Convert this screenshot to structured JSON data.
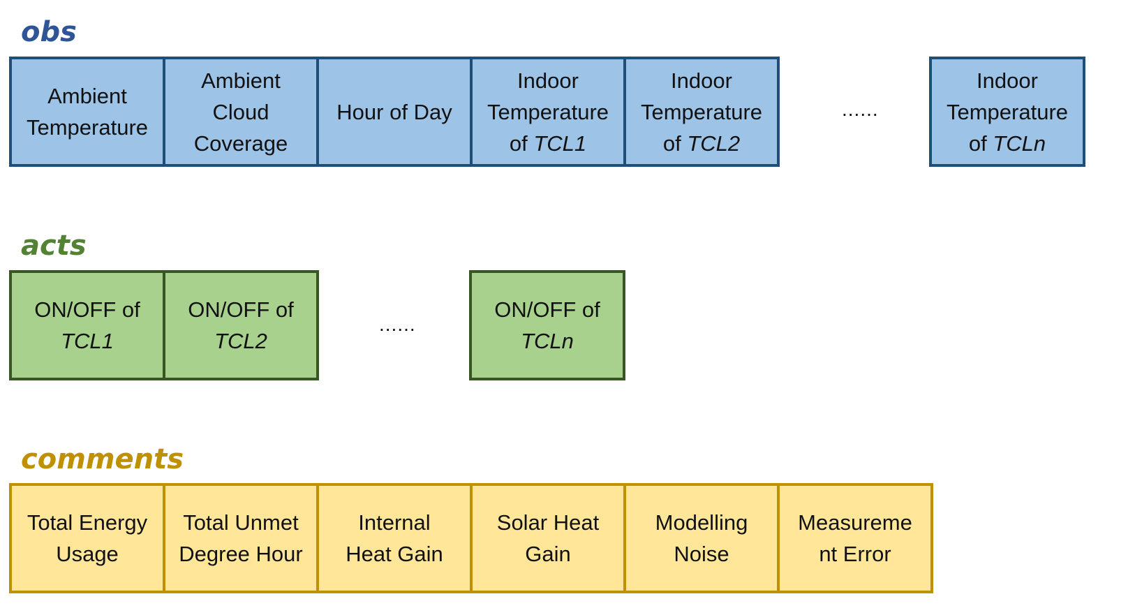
{
  "obs": {
    "title": "obs",
    "color": "#2f5597",
    "fill": "#9dc3e6",
    "border": "#1f4e79",
    "boxes": [
      {
        "l1": "Ambient",
        "l2": "Temperature"
      },
      {
        "l1": "Ambient",
        "l2": "Cloud",
        "l3": "Coverage"
      },
      {
        "l1": "Hour of Day"
      },
      {
        "l1": "Indoor",
        "l2": "Temperature",
        "l3a": "of ",
        "l3b": "TCL1"
      },
      {
        "l1": "Indoor",
        "l2": "Temperature",
        "l3a": "of ",
        "l3b": "TCL2"
      },
      {
        "l1": "Indoor",
        "l2": "Temperature",
        "l3a": "of ",
        "l3b": "TCLn"
      }
    ],
    "ellipsis": "......"
  },
  "acts": {
    "title": "acts",
    "color": "#548235",
    "fill": "#a9d18e",
    "border": "#375623",
    "boxes": [
      {
        "l1": "ON/OFF of",
        "l2": "TCL1"
      },
      {
        "l1": "ON/OFF of",
        "l2": "TCL2"
      },
      {
        "l1": "ON/OFF of",
        "l2": "TCLn"
      }
    ],
    "ellipsis": "......"
  },
  "comments": {
    "title": "comments",
    "color": "#bf9000",
    "fill": "#ffe699",
    "border": "#bf9000",
    "boxes": [
      {
        "l1": "Total Energy",
        "l2": "Usage"
      },
      {
        "l1": "Total Unmet",
        "l2": "Degree Hour"
      },
      {
        "l1": "Internal",
        "l2": "Heat Gain"
      },
      {
        "l1": "Solar Heat",
        "l2": "Gain"
      },
      {
        "l1": "Modelling",
        "l2": "Noise"
      },
      {
        "l1": "Measureme",
        "l2": "nt Error"
      }
    ]
  }
}
